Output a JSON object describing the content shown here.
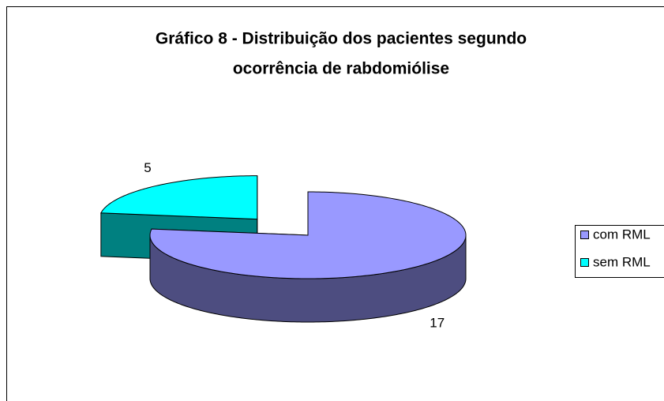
{
  "chart_data": {
    "type": "pie",
    "three_d": true,
    "title": [
      "Gráfico 8 - Distribuição dos pacientes segundo",
      "ocorrência de rabdomiólise"
    ],
    "categories": [
      "com RML",
      "sem RML"
    ],
    "values": [
      17,
      5
    ],
    "colors": [
      "#9999ff",
      "#00ffff"
    ],
    "side_colors": [
      "#4d4d80",
      "#008080"
    ],
    "exploded": [
      false,
      true
    ],
    "legend": "right"
  }
}
